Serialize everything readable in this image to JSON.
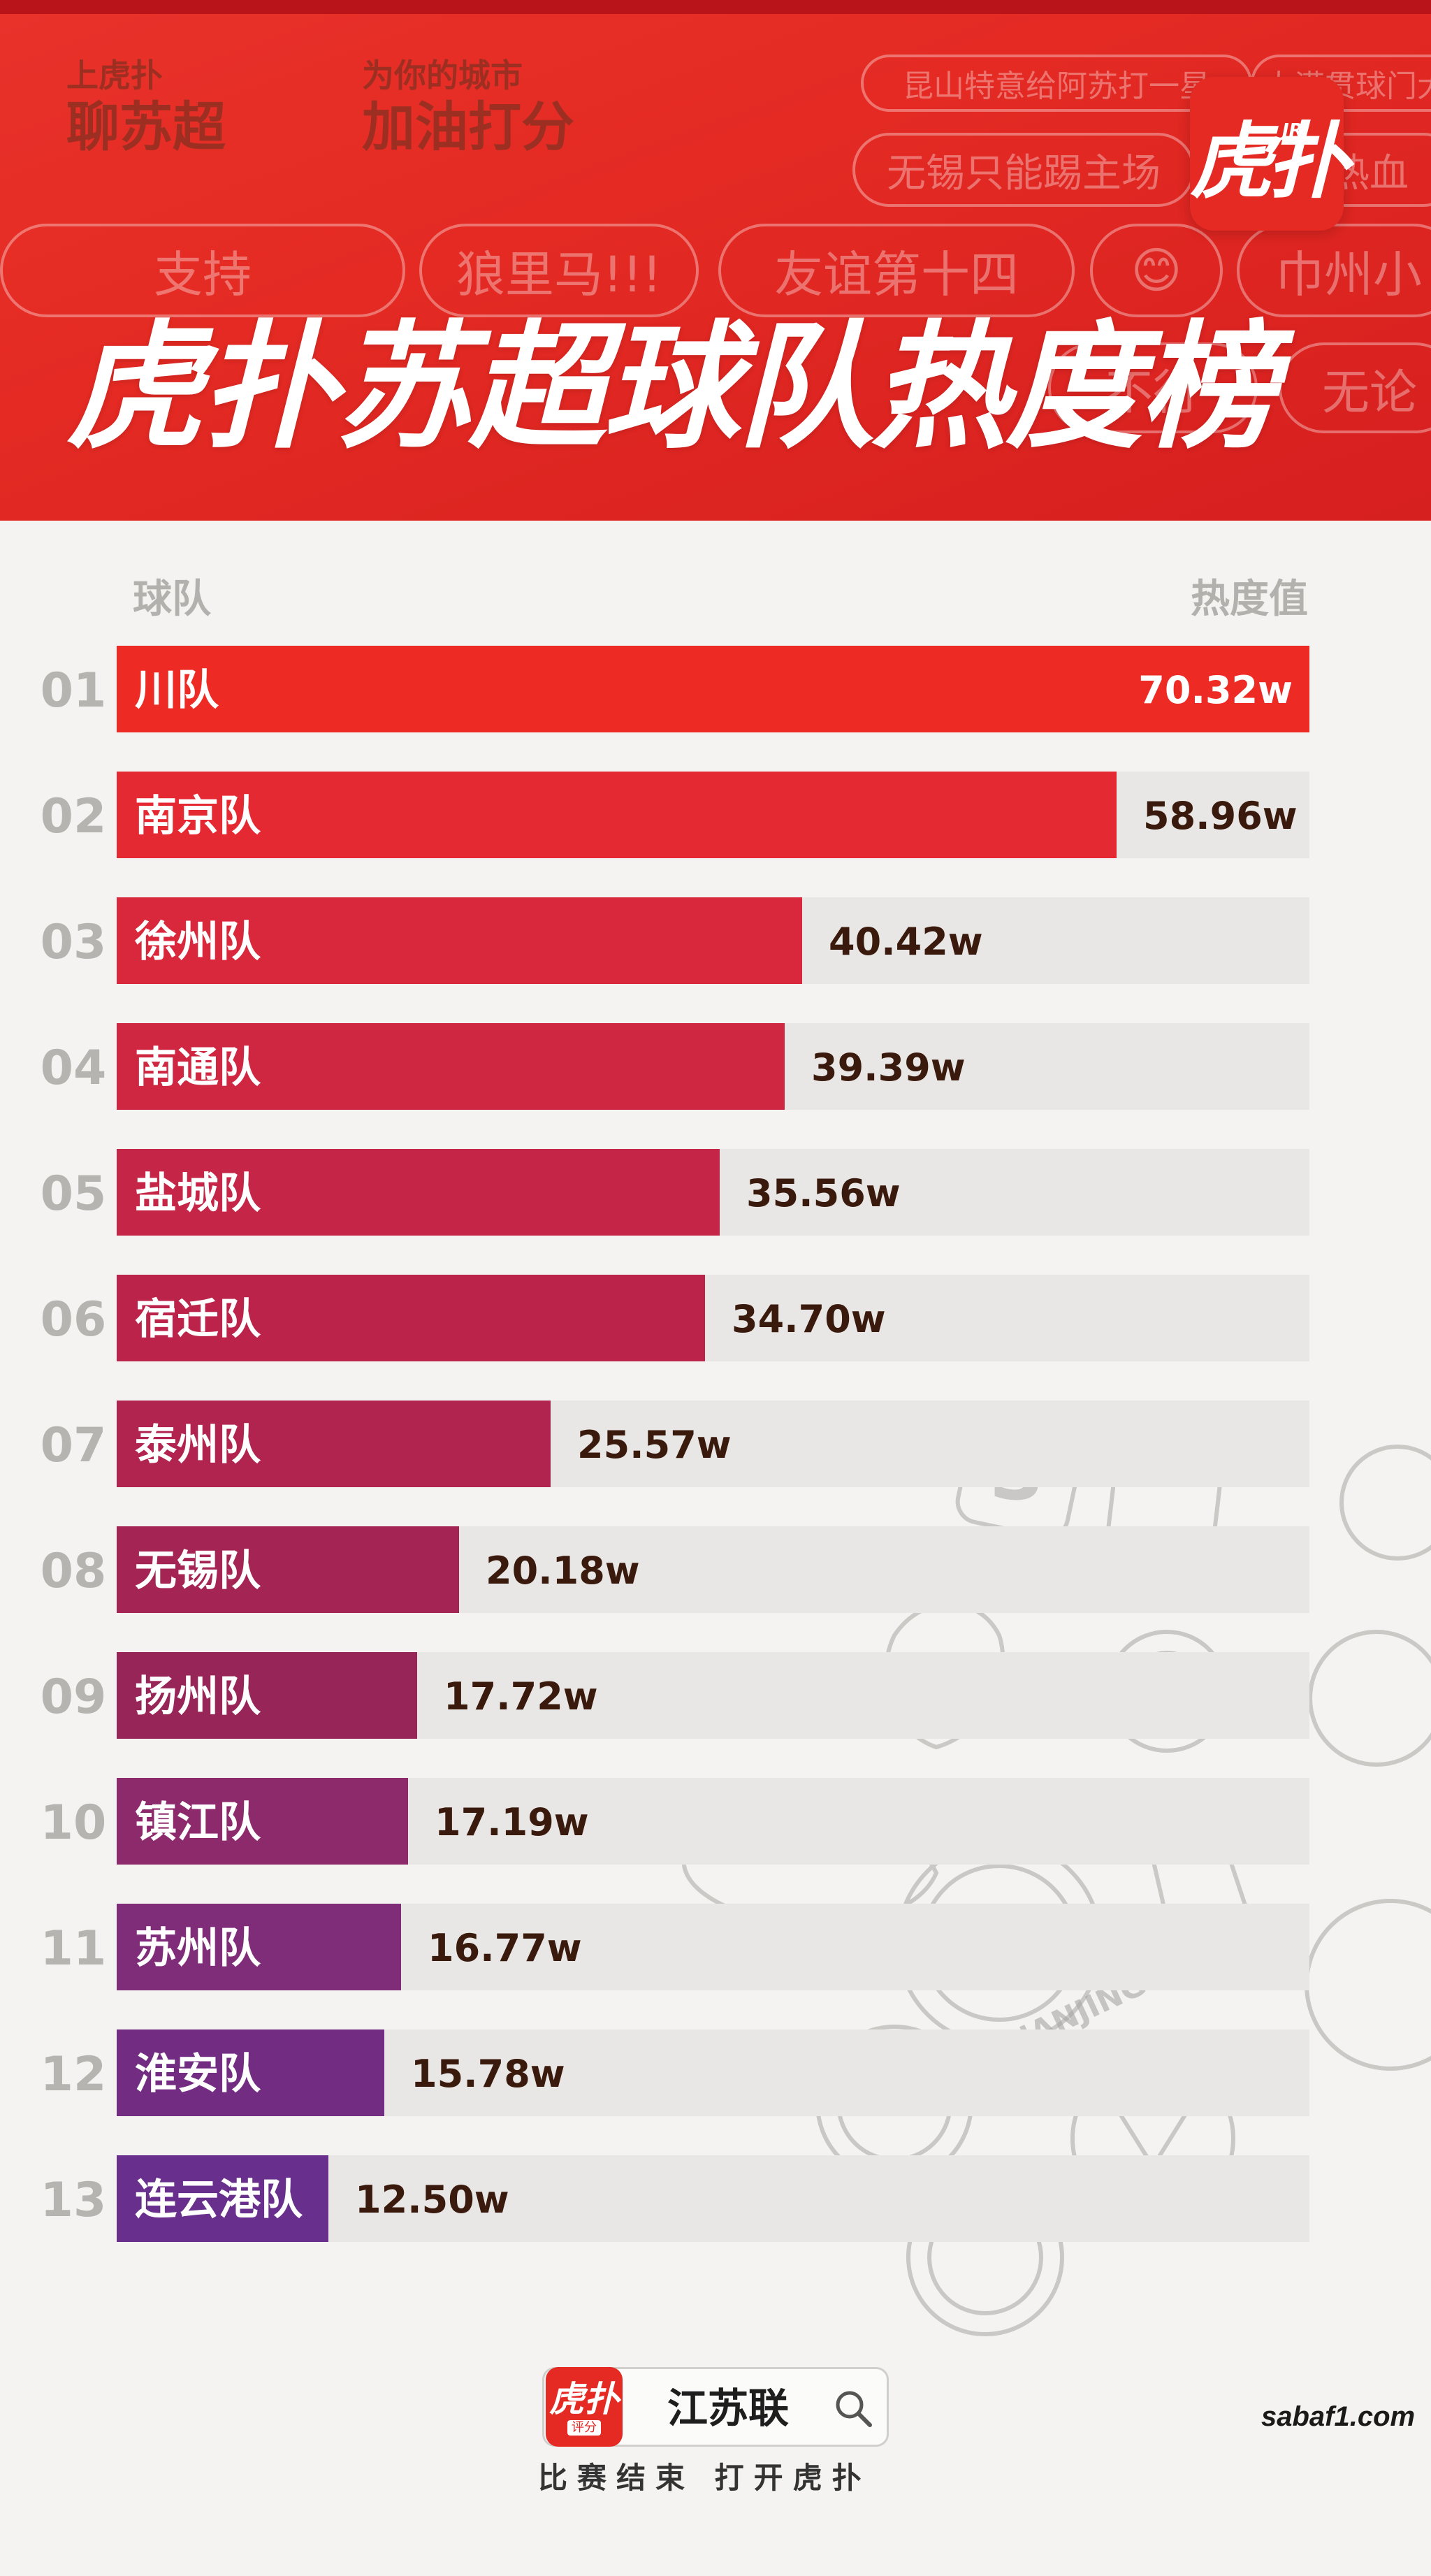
{
  "header": {
    "slogan_left": {
      "small": "上虎扑",
      "big": "聊苏超"
    },
    "slogan_right": {
      "small": "为你的城市",
      "big": "加油打分"
    },
    "pills": [
      "昆山特意给阿苏打一星",
      "大满贯球门大",
      "无锡只能踢主场",
      "热血",
      "支持",
      "狼里马!!!",
      "友谊第十四",
      "巾州小",
      "不行",
      "无论"
    ],
    "logo_text": "虎扑",
    "logo_badge": "JR",
    "title": "虎扑苏超球队热度榜"
  },
  "columns": {
    "team": "球队",
    "heat": "热度值"
  },
  "chart_data": {
    "type": "bar",
    "orientation": "horizontal",
    "title": "虎扑苏超球队热度榜",
    "category_header": "球队",
    "value_header": "热度值",
    "unit": "w",
    "xlim": [
      0,
      70.32
    ],
    "grid": false,
    "legend": "none",
    "ranks": [
      "01",
      "02",
      "03",
      "04",
      "05",
      "06",
      "07",
      "08",
      "09",
      "10",
      "11",
      "12",
      "13"
    ],
    "categories": [
      "川队",
      "南京队",
      "徐州队",
      "南通队",
      "盐城队",
      "宿迁队",
      "泰州队",
      "无锡队",
      "扬州队",
      "镇江队",
      "苏州队",
      "淮安队",
      "连云港队"
    ],
    "values": [
      70.32,
      58.96,
      40.42,
      39.39,
      35.56,
      34.7,
      25.57,
      20.18,
      17.72,
      17.19,
      16.77,
      15.78,
      12.5
    ],
    "value_labels": [
      "70.32w",
      "58.96w",
      "40.42w",
      "39.39w",
      "35.56w",
      "34.70w",
      "25.57w",
      "20.18w",
      "17.72w",
      "17.19w",
      "16.77w",
      "15.78w",
      "12.50w"
    ],
    "colors": [
      "#ee2a24",
      "#e52932",
      "#d9283b",
      "#cf2742",
      "#c52547",
      "#bc234a",
      "#b0244f",
      "#a42454",
      "#982558",
      "#8c2a6c",
      "#7f2c79",
      "#722d82",
      "#68308c"
    ],
    "track_color": "#e8e7e5",
    "rank_color": "#b6b4b1",
    "value_label_color": "#3a1a0c"
  },
  "footer": {
    "logo_text": "虎扑",
    "logo_sub": "评分",
    "search_term": "江苏联",
    "caption": "比赛结束 打开虎扑",
    "watermark": "sabaf1.com"
  }
}
